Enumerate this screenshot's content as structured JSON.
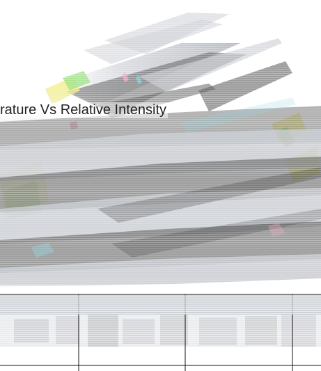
{
  "title": "rature Vs Relative Intensity",
  "colors": {
    "stroke_gray": "#4a4a4a",
    "stroke_light": "#c6c9cf",
    "accent_yellow": "#f2ee88",
    "accent_green": "#9fe08a",
    "accent_cyan": "#86d0da",
    "accent_pink": "#f0a8c0",
    "grid_line": "#111111"
  },
  "grid": {
    "columns": 4,
    "rows": 2
  }
}
